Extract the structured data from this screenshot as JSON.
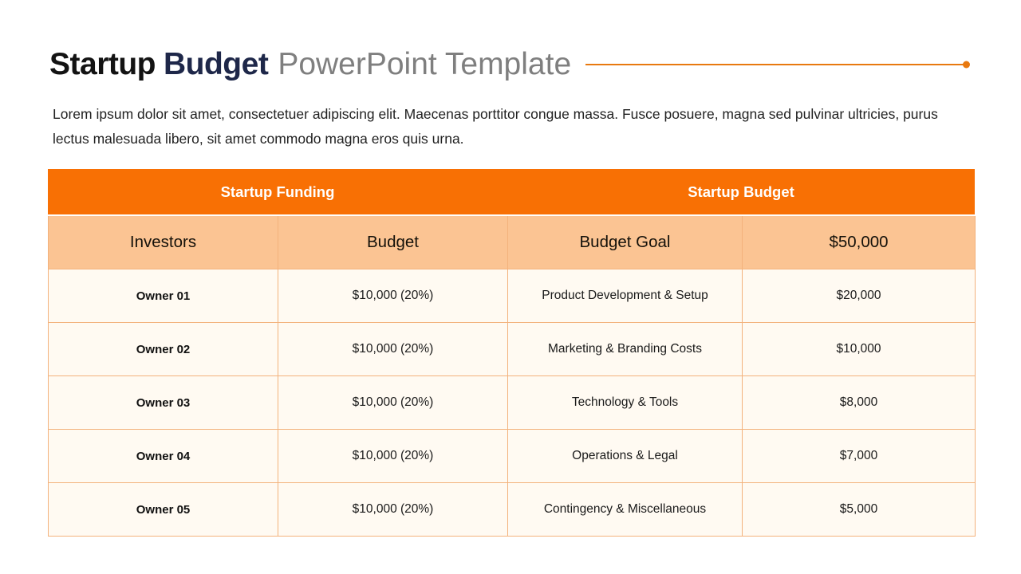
{
  "header": {
    "title_bold_1": "Startup",
    "title_bold_2": "Budget",
    "title_light": "PowerPoint Template"
  },
  "intro": {
    "text": "Lorem ipsum dolor sit amet, consectetuer adipiscing elit. Maecenas porttitor congue massa. Fusce posuere, magna sed pulvinar ultricies, purus lectus malesuada libero, sit amet commodo magna eros quis urna."
  },
  "table": {
    "group_headers": [
      {
        "label": "Startup Funding"
      },
      {
        "label": "Startup Budget"
      }
    ],
    "column_headers": [
      "Investors",
      "Budget",
      "Budget Goal",
      "$50,000"
    ],
    "rows": [
      [
        "Owner 01",
        "$10,000 (20%)",
        "Product Development & Setup",
        "$20,000"
      ],
      [
        "Owner 02",
        "$10,000 (20%)",
        "Marketing & Branding Costs",
        "$10,000"
      ],
      [
        "Owner 03",
        "$10,000 (20%)",
        "Technology & Tools",
        "$8,000"
      ],
      [
        "Owner 04",
        "$10,000 (20%)",
        "Operations & Legal",
        "$7,000"
      ],
      [
        "Owner 05",
        "$10,000 (20%)",
        "Contingency & Miscellaneous",
        "$5,000"
      ]
    ]
  },
  "colors": {
    "header_fill": "#F87004",
    "subheader_fill": "#FBC493",
    "row_fill": "#FFFAF2",
    "table_border": "#F3B27C",
    "title_navy": "#1E2749",
    "secondary_gray": "#7F7F7F",
    "rule_orange": "#E8790F"
  }
}
